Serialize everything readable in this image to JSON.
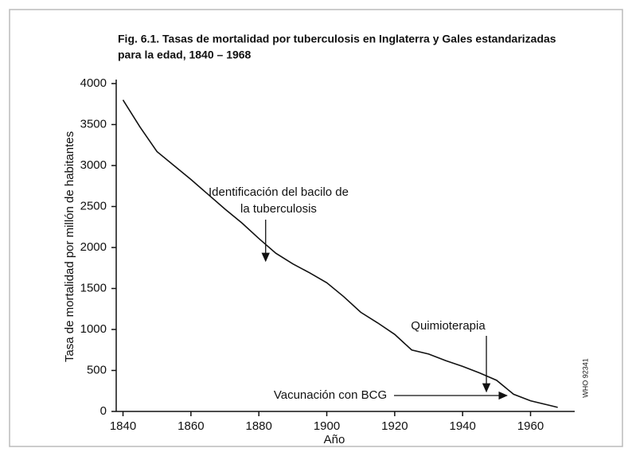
{
  "chart_data": {
    "type": "line",
    "title": [
      "Fig. 6.1.  Tasas de mortalidad por tuberculosis en Inglaterra y Gales estandarizadas",
      "para la edad, 1840 – 1968"
    ],
    "x_label": "Año",
    "y_label": "Tasa de mortalidad por millón de habitantes",
    "x": [
      1840,
      1845,
      1850,
      1855,
      1860,
      1865,
      1870,
      1875,
      1880,
      1885,
      1890,
      1895,
      1900,
      1905,
      1910,
      1915,
      1920,
      1925,
      1930,
      1935,
      1940,
      1945,
      1950,
      1955,
      1960,
      1965,
      1968
    ],
    "series": [
      {
        "name": "Tasa de mortalidad",
        "color": "#111111",
        "values": [
          3800,
          3470,
          3170,
          3000,
          2830,
          2650,
          2470,
          2300,
          2110,
          1930,
          1800,
          1690,
          1570,
          1400,
          1210,
          1080,
          940,
          750,
          700,
          620,
          550,
          470,
          380,
          210,
          130,
          80,
          50
        ]
      }
    ],
    "xlim": [
      1838,
      1973
    ],
    "xticks": [
      1840,
      1860,
      1880,
      1900,
      1920,
      1940,
      1960
    ],
    "ylim": [
      0,
      4000
    ],
    "yticks": [
      0,
      500,
      1000,
      1500,
      2000,
      2500,
      3000,
      3500,
      4000
    ],
    "annotations": [
      {
        "text": [
          "Identificación del bacilo de",
          "la tuberculosis"
        ],
        "x": 1882
      },
      {
        "text": [
          "Quimioterapia"
        ],
        "x": 1947
      },
      {
        "text": [
          "Vacunación con BCG"
        ],
        "x": 1953
      }
    ],
    "source": "WHO 92341"
  }
}
